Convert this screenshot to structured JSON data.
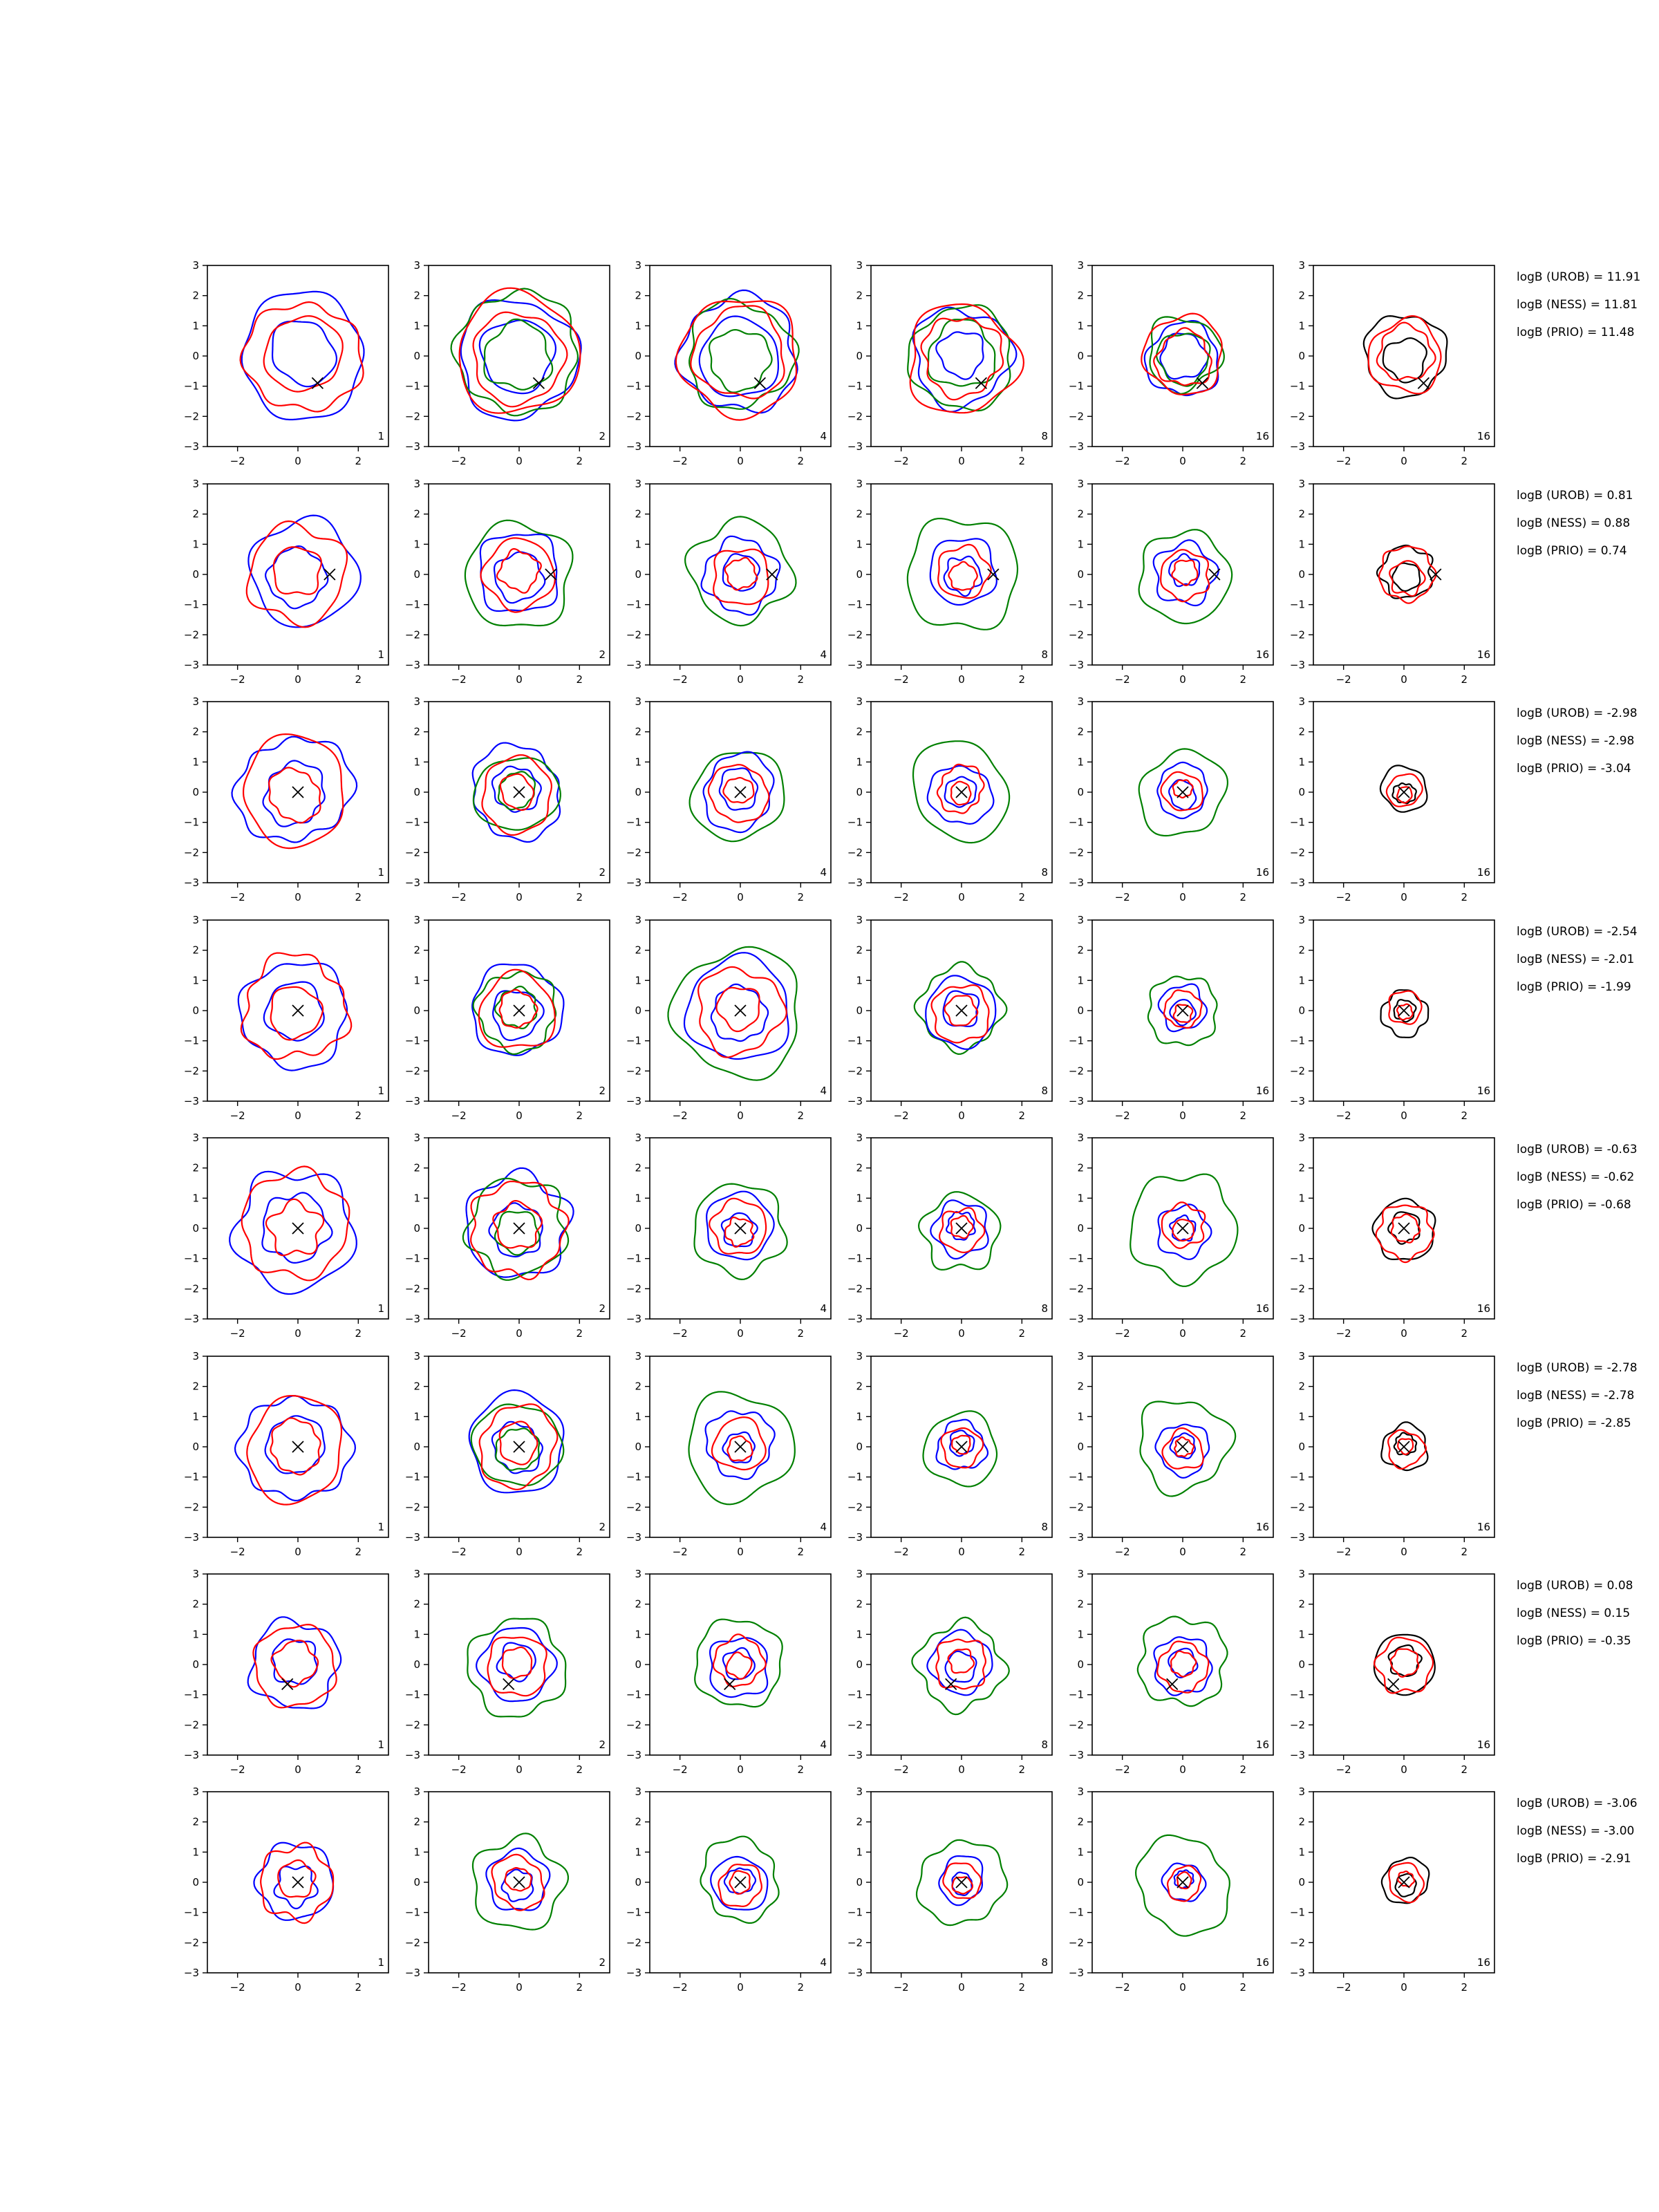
{
  "chart_data": {
    "type": "contour-grid",
    "rows": 8,
    "cols": 6,
    "xlim": [
      -3,
      3
    ],
    "ylim": [
      -3,
      3
    ],
    "xticks": [
      -2,
      0,
      2
    ],
    "yticks": [
      3,
      2,
      1,
      0,
      -1,
      -2,
      -3
    ],
    "tick_labels_x": [
      "−2",
      "0",
      "2"
    ],
    "tick_labels_y": [
      "3",
      "2",
      "1",
      "0",
      "−1",
      "−2",
      "−3"
    ],
    "panel_labels": [
      "1",
      "2",
      "4",
      "8",
      "16",
      "16"
    ],
    "colors": {
      "blue": "#0000ff",
      "red": "#ff0000",
      "green": "#008000",
      "black": "#000000"
    },
    "marker": "x",
    "marker_positions": [
      {
        "x": 0.65,
        "y": -0.9
      },
      {
        "x": 1.05,
        "y": 0.0
      },
      {
        "x": 0.0,
        "y": 0.0
      },
      {
        "x": 0.0,
        "y": 0.0
      },
      {
        "x": 0.0,
        "y": 0.0
      },
      {
        "x": 0.0,
        "y": 0.0
      },
      {
        "x": -0.35,
        "y": -0.65
      },
      {
        "x": 0.0,
        "y": 0.0
      }
    ],
    "row_logB": [
      [
        "logB (UROB) = 11.91",
        "logB (NESS) = 11.81",
        "logB (PRIO) = 11.48"
      ],
      [
        "logB (UROB) = 0.81",
        "logB (NESS) = 0.88",
        "logB (PRIO) = 0.74"
      ],
      [
        "logB (UROB) = -2.98",
        "logB (NESS) = -2.98",
        "logB (PRIO) = -3.04"
      ],
      [
        "logB (UROB) = -2.54",
        "logB (NESS) = -2.01",
        "logB (PRIO) = -1.99"
      ],
      [
        "logB (UROB) = -0.63",
        "logB (NESS) = -0.62",
        "logB (PRIO) = -0.68"
      ],
      [
        "logB (UROB) = -2.78",
        "logB (NESS) = -2.78",
        "logB (PRIO) = -2.85"
      ],
      [
        "logB (UROB) = 0.08",
        "logB (NESS) = 0.15",
        "logB (PRIO) = -0.35"
      ],
      [
        "logB (UROB) = -3.06",
        "logB (NESS) = -3.00",
        "logB (PRIO) = -2.91"
      ]
    ],
    "contours": [
      [
        [
          {
            "c": "blue",
            "r": 2.05
          },
          {
            "c": "blue",
            "r": 1.05
          },
          {
            "c": "red",
            "r": 1.85
          },
          {
            "c": "red",
            "r": 1.25
          }
        ],
        [
          {
            "c": "blue",
            "r": 1.95
          },
          {
            "c": "blue",
            "r": 1.2
          },
          {
            "c": "green",
            "r": 2.0
          },
          {
            "c": "green",
            "r": 1.1
          },
          {
            "c": "red",
            "r": 2.0
          },
          {
            "c": "red",
            "r": 1.5
          }
        ],
        [
          {
            "c": "blue",
            "r": 1.9
          },
          {
            "c": "blue",
            "r": 1.3
          },
          {
            "c": "green",
            "r": 1.75
          },
          {
            "c": "green",
            "r": 1.0
          },
          {
            "c": "red",
            "r": 1.95
          },
          {
            "c": "red",
            "r": 1.5
          }
        ],
        [
          {
            "c": "blue",
            "r": 1.6
          },
          {
            "c": "blue",
            "r": 0.75
          },
          {
            "c": "green",
            "r": 1.7
          },
          {
            "c": "green",
            "r": 1.1
          },
          {
            "c": "red",
            "r": 1.8
          },
          {
            "c": "red",
            "r": 1.3
          }
        ],
        [
          {
            "c": "blue",
            "r": 1.2
          },
          {
            "c": "blue",
            "r": 0.75
          },
          {
            "c": "green",
            "r": 1.2
          },
          {
            "c": "green",
            "r": 0.85
          },
          {
            "c": "red",
            "r": 1.3
          },
          {
            "c": "red",
            "r": 0.9
          }
        ],
        [
          {
            "c": "black",
            "r": 1.35
          },
          {
            "c": "black",
            "r": 0.7
          },
          {
            "c": "red",
            "r": 1.2
          },
          {
            "c": "red",
            "r": 0.9
          }
        ]
      ],
      [
        [
          {
            "c": "blue",
            "r": 1.75
          },
          {
            "c": "blue",
            "r": 0.95
          },
          {
            "c": "red",
            "r": 1.6
          },
          {
            "c": "red",
            "r": 0.8
          }
        ],
        [
          {
            "c": "green",
            "r": 1.75
          },
          {
            "c": "blue",
            "r": 1.35
          },
          {
            "c": "blue",
            "r": 0.8
          },
          {
            "c": "red",
            "r": 1.15
          },
          {
            "c": "red",
            "r": 0.65
          }
        ],
        [
          {
            "c": "green",
            "r": 1.65
          },
          {
            "c": "blue",
            "r": 1.2
          },
          {
            "c": "blue",
            "r": 0.6
          },
          {
            "c": "red",
            "r": 0.95
          },
          {
            "c": "red",
            "r": 0.5
          }
        ],
        [
          {
            "c": "green",
            "r": 1.85
          },
          {
            "c": "blue",
            "r": 1.1
          },
          {
            "c": "blue",
            "r": 0.6
          },
          {
            "c": "red",
            "r": 0.85
          },
          {
            "c": "red",
            "r": 0.45
          }
        ],
        [
          {
            "c": "green",
            "r": 1.5
          },
          {
            "c": "blue",
            "r": 1.0
          },
          {
            "c": "blue",
            "r": 0.5
          },
          {
            "c": "red",
            "r": 0.8
          },
          {
            "c": "red",
            "r": 0.4
          }
        ],
        [
          {
            "c": "black",
            "r": 0.85
          },
          {
            "c": "black",
            "r": 0.45
          },
          {
            "c": "red",
            "r": 0.9
          },
          {
            "c": "red",
            "r": 0.55
          }
        ]
      ],
      [
        [
          {
            "c": "blue",
            "r": 1.8
          },
          {
            "c": "blue",
            "r": 1.0
          },
          {
            "c": "red",
            "r": 1.75
          },
          {
            "c": "red",
            "r": 0.85
          }
        ],
        [
          {
            "c": "blue",
            "r": 1.5
          },
          {
            "c": "blue",
            "r": 0.75
          },
          {
            "c": "green",
            "r": 1.3
          },
          {
            "c": "green",
            "r": 0.6
          },
          {
            "c": "red",
            "r": 1.2
          },
          {
            "c": "red",
            "r": 0.55
          }
        ],
        [
          {
            "c": "green",
            "r": 1.5
          },
          {
            "c": "blue",
            "r": 1.2
          },
          {
            "c": "blue",
            "r": 0.65
          },
          {
            "c": "red",
            "r": 0.95
          },
          {
            "c": "red",
            "r": 0.45
          }
        ],
        [
          {
            "c": "green",
            "r": 1.6
          },
          {
            "c": "blue",
            "r": 1.0
          },
          {
            "c": "blue",
            "r": 0.5
          },
          {
            "c": "red",
            "r": 0.75
          },
          {
            "c": "red",
            "r": 0.35
          }
        ],
        [
          {
            "c": "green",
            "r": 1.4
          },
          {
            "c": "blue",
            "r": 0.85
          },
          {
            "c": "blue",
            "r": 0.45
          },
          {
            "c": "red",
            "r": 0.65
          },
          {
            "c": "red",
            "r": 0.3
          }
        ],
        [
          {
            "c": "black",
            "r": 0.75
          },
          {
            "c": "black",
            "r": 0.35
          },
          {
            "c": "red",
            "r": 0.55
          },
          {
            "c": "red",
            "r": 0.25
          }
        ]
      ],
      [
        [
          {
            "c": "blue",
            "r": 1.75
          },
          {
            "c": "blue",
            "r": 0.95
          },
          {
            "c": "red",
            "r": 1.7
          },
          {
            "c": "red",
            "r": 0.85
          }
        ],
        [
          {
            "c": "blue",
            "r": 1.5
          },
          {
            "c": "blue",
            "r": 0.8
          },
          {
            "c": "green",
            "r": 1.3
          },
          {
            "c": "green",
            "r": 0.65
          },
          {
            "c": "red",
            "r": 1.25
          },
          {
            "c": "red",
            "r": 0.6
          }
        ],
        [
          {
            "c": "green",
            "r": 2.1
          },
          {
            "c": "blue",
            "r": 1.7
          },
          {
            "c": "blue",
            "r": 0.9
          },
          {
            "c": "red",
            "r": 1.4
          },
          {
            "c": "red",
            "r": 0.7
          }
        ],
        [
          {
            "c": "green",
            "r": 1.35
          },
          {
            "c": "blue",
            "r": 1.15
          },
          {
            "c": "blue",
            "r": 0.6
          },
          {
            "c": "red",
            "r": 0.95
          },
          {
            "c": "red",
            "r": 0.5
          }
        ],
        [
          {
            "c": "green",
            "r": 1.15
          },
          {
            "c": "blue",
            "r": 0.75
          },
          {
            "c": "blue",
            "r": 0.4
          },
          {
            "c": "red",
            "r": 0.6
          },
          {
            "c": "red",
            "r": 0.3
          }
        ],
        [
          {
            "c": "black",
            "r": 0.75
          },
          {
            "c": "black",
            "r": 0.35
          },
          {
            "c": "red",
            "r": 0.55
          },
          {
            "c": "red",
            "r": 0.25
          }
        ]
      ],
      [
        [
          {
            "c": "blue",
            "r": 1.95
          },
          {
            "c": "blue",
            "r": 1.1
          },
          {
            "c": "red",
            "r": 1.75
          },
          {
            "c": "red",
            "r": 0.85
          }
        ],
        [
          {
            "c": "blue",
            "r": 1.7
          },
          {
            "c": "blue",
            "r": 0.85
          },
          {
            "c": "green",
            "r": 1.6
          },
          {
            "c": "green",
            "r": 0.7
          },
          {
            "c": "red",
            "r": 1.55
          },
          {
            "c": "red",
            "r": 0.75
          }
        ],
        [
          {
            "c": "green",
            "r": 1.5
          },
          {
            "c": "blue",
            "r": 1.1
          },
          {
            "c": "blue",
            "r": 0.55
          },
          {
            "c": "red",
            "r": 0.9
          },
          {
            "c": "red",
            "r": 0.45
          }
        ],
        [
          {
            "c": "green",
            "r": 1.25
          },
          {
            "c": "blue",
            "r": 0.9
          },
          {
            "c": "blue",
            "r": 0.45
          },
          {
            "c": "red",
            "r": 0.7
          },
          {
            "c": "red",
            "r": 0.35
          }
        ],
        [
          {
            "c": "green",
            "r": 1.75
          },
          {
            "c": "blue",
            "r": 0.85
          },
          {
            "c": "blue",
            "r": 0.4
          },
          {
            "c": "red",
            "r": 0.7
          },
          {
            "c": "red",
            "r": 0.35
          }
        ],
        [
          {
            "c": "black",
            "r": 1.0
          },
          {
            "c": "black",
            "r": 0.5
          },
          {
            "c": "red",
            "r": 0.9
          },
          {
            "c": "red",
            "r": 0.45
          }
        ]
      ],
      [
        [
          {
            "c": "blue",
            "r": 1.75
          },
          {
            "c": "blue",
            "r": 0.95
          },
          {
            "c": "red",
            "r": 1.65
          },
          {
            "c": "red",
            "r": 0.85
          }
        ],
        [
          {
            "c": "blue",
            "r": 1.6
          },
          {
            "c": "blue",
            "r": 0.8
          },
          {
            "c": "green",
            "r": 1.4
          },
          {
            "c": "green",
            "r": 0.7
          },
          {
            "c": "red",
            "r": 1.3
          },
          {
            "c": "red",
            "r": 0.65
          }
        ],
        [
          {
            "c": "green",
            "r": 1.75
          },
          {
            "c": "blue",
            "r": 1.1
          },
          {
            "c": "blue",
            "r": 0.5
          },
          {
            "c": "red",
            "r": 0.85
          },
          {
            "c": "red",
            "r": 0.4
          }
        ],
        [
          {
            "c": "green",
            "r": 1.2
          },
          {
            "c": "blue",
            "r": 0.8
          },
          {
            "c": "blue",
            "r": 0.4
          },
          {
            "c": "red",
            "r": 0.65
          },
          {
            "c": "red",
            "r": 0.3
          }
        ],
        [
          {
            "c": "green",
            "r": 1.5
          },
          {
            "c": "blue",
            "r": 0.85
          },
          {
            "c": "blue",
            "r": 0.4
          },
          {
            "c": "red",
            "r": 0.65
          },
          {
            "c": "red",
            "r": 0.3
          }
        ],
        [
          {
            "c": "black",
            "r": 0.75
          },
          {
            "c": "black",
            "r": 0.35
          },
          {
            "c": "red",
            "r": 0.6
          },
          {
            "c": "red",
            "r": 0.25
          }
        ]
      ],
      [
        [
          {
            "c": "blue",
            "r": 1.45
          },
          {
            "c": "blue",
            "r": 0.75
          },
          {
            "c": "red",
            "r": 1.35
          },
          {
            "c": "red",
            "r": 0.7
          }
        ],
        [
          {
            "c": "green",
            "r": 1.6
          },
          {
            "c": "blue",
            "r": 1.2
          },
          {
            "c": "blue",
            "r": 0.6
          },
          {
            "c": "red",
            "r": 1.0
          },
          {
            "c": "red",
            "r": 0.5
          }
        ],
        [
          {
            "c": "green",
            "r": 1.45
          },
          {
            "c": "blue",
            "r": 1.0
          },
          {
            "c": "blue",
            "r": 0.5
          },
          {
            "c": "red",
            "r": 0.8
          },
          {
            "c": "red",
            "r": 0.4
          }
        ],
        [
          {
            "c": "green",
            "r": 1.4
          },
          {
            "c": "blue",
            "r": 1.0
          },
          {
            "c": "blue",
            "r": 0.5
          },
          {
            "c": "red",
            "r": 0.85
          },
          {
            "c": "red",
            "r": 0.4
          }
        ],
        [
          {
            "c": "green",
            "r": 1.45
          },
          {
            "c": "blue",
            "r": 0.95
          },
          {
            "c": "blue",
            "r": 0.45
          },
          {
            "c": "red",
            "r": 0.8
          },
          {
            "c": "red",
            "r": 0.4
          }
        ],
        [
          {
            "c": "black",
            "r": 1.0
          },
          {
            "c": "black",
            "r": 0.5
          },
          {
            "c": "red",
            "r": 0.9
          },
          {
            "c": "red",
            "r": 0.45
          }
        ]
      ],
      [
        [
          {
            "c": "blue",
            "r": 1.25
          },
          {
            "c": "blue",
            "r": 0.65
          },
          {
            "c": "red",
            "r": 1.2
          },
          {
            "c": "red",
            "r": 0.6
          }
        ],
        [
          {
            "c": "green",
            "r": 1.5
          },
          {
            "c": "blue",
            "r": 1.0
          },
          {
            "c": "blue",
            "r": 0.5
          },
          {
            "c": "red",
            "r": 0.85
          },
          {
            "c": "red",
            "r": 0.4
          }
        ],
        [
          {
            "c": "green",
            "r": 1.3
          },
          {
            "c": "blue",
            "r": 0.9
          },
          {
            "c": "blue",
            "r": 0.45
          },
          {
            "c": "red",
            "r": 0.7
          },
          {
            "c": "red",
            "r": 0.35
          }
        ],
        [
          {
            "c": "green",
            "r": 1.4
          },
          {
            "c": "blue",
            "r": 0.75
          },
          {
            "c": "blue",
            "r": 0.35
          },
          {
            "c": "red",
            "r": 0.6
          },
          {
            "c": "red",
            "r": 0.3
          }
        ],
        [
          {
            "c": "green",
            "r": 1.55
          },
          {
            "c": "blue",
            "r": 0.65
          },
          {
            "c": "blue",
            "r": 0.3
          },
          {
            "c": "red",
            "r": 0.55
          },
          {
            "c": "red",
            "r": 0.25
          }
        ],
        [
          {
            "c": "black",
            "r": 0.75
          },
          {
            "c": "black",
            "r": 0.35
          },
          {
            "c": "red",
            "r": 0.6
          },
          {
            "c": "red",
            "r": 0.25
          }
        ]
      ]
    ]
  }
}
